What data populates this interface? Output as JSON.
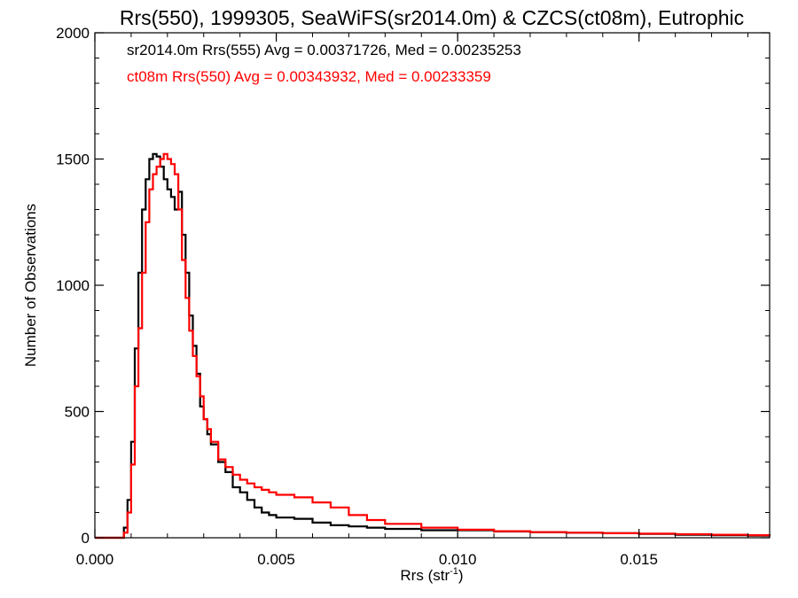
{
  "chart_data": {
    "type": "line",
    "title": "Rrs(550), 1999305, SeaWiFS(sr2014.0m) & CZCS(ct08m), Eutrophic",
    "xlabel": "Rrs (str",
    "xlabel_sup": "-1",
    "xlabel_suffix": ")",
    "ylabel": "Number of Observations",
    "xlim": [
      0.0,
      0.0186
    ],
    "ylim": [
      0,
      2000
    ],
    "x_ticks": [
      0.0,
      0.005,
      0.01,
      0.015
    ],
    "x_tick_labels": [
      "0.000",
      "0.005",
      "0.010",
      "0.015"
    ],
    "y_ticks": [
      0,
      500,
      1000,
      1500,
      2000
    ],
    "y_tick_labels": [
      "0",
      "500",
      "1000",
      "1500",
      "2000"
    ],
    "annotations": [
      "sr2014.0m Rrs(555) Avg = 0.00371726, Med = 0.00235253",
      "ct08m Rrs(550) Avg = 0.00343932, Med = 0.00233359"
    ],
    "legend_position": "top-left",
    "grid": false,
    "step": "histogram",
    "series": [
      {
        "color": "#000000",
        "x": [
          0.0,
          0.0007,
          0.0008,
          0.0009,
          0.001,
          0.0011,
          0.0012,
          0.0013,
          0.0014,
          0.0015,
          0.0016,
          0.0017,
          0.0018,
          0.0019,
          0.002,
          0.0021,
          0.0022,
          0.0023,
          0.0024,
          0.0025,
          0.0026,
          0.0027,
          0.0028,
          0.0029,
          0.003,
          0.0031,
          0.0032,
          0.0034,
          0.0036,
          0.0038,
          0.004,
          0.0042,
          0.0044,
          0.0046,
          0.0048,
          0.005,
          0.0055,
          0.006,
          0.0065,
          0.007,
          0.0075,
          0.008,
          0.009,
          0.01,
          0.011,
          0.012,
          0.013,
          0.014,
          0.015,
          0.016,
          0.017,
          0.018,
          0.0186
        ],
        "y": [
          0,
          0,
          40,
          150,
          380,
          750,
          1050,
          1300,
          1420,
          1500,
          1520,
          1510,
          1470,
          1420,
          1380,
          1350,
          1300,
          1370,
          1200,
          1050,
          880,
          760,
          650,
          520,
          470,
          410,
          370,
          300,
          260,
          200,
          180,
          150,
          120,
          100,
          90,
          80,
          75,
          60,
          50,
          45,
          40,
          35,
          30,
          30,
          25,
          22,
          20,
          18,
          15,
          12,
          10,
          8,
          6
        ]
      },
      {
        "color": "#ff0000",
        "x": [
          0.0,
          0.0007,
          0.0008,
          0.0009,
          0.001,
          0.0011,
          0.0012,
          0.0013,
          0.0014,
          0.0015,
          0.0016,
          0.0017,
          0.0018,
          0.0019,
          0.002,
          0.0021,
          0.0022,
          0.0023,
          0.0024,
          0.0025,
          0.0026,
          0.0027,
          0.0028,
          0.0029,
          0.003,
          0.0031,
          0.0032,
          0.0034,
          0.0036,
          0.0038,
          0.004,
          0.0042,
          0.0044,
          0.0046,
          0.0048,
          0.005,
          0.0055,
          0.006,
          0.0065,
          0.007,
          0.0075,
          0.008,
          0.009,
          0.01,
          0.011,
          0.012,
          0.013,
          0.014,
          0.015,
          0.016,
          0.017,
          0.018,
          0.0186
        ],
        "y": [
          0,
          0,
          20,
          100,
          290,
          600,
          830,
          1050,
          1250,
          1380,
          1440,
          1470,
          1500,
          1520,
          1500,
          1480,
          1440,
          1300,
          1100,
          950,
          820,
          720,
          640,
          560,
          470,
          430,
          380,
          310,
          280,
          250,
          230,
          215,
          200,
          190,
          180,
          170,
          160,
          140,
          120,
          90,
          70,
          55,
          40,
          32,
          26,
          22,
          20,
          18,
          16,
          14,
          12,
          10,
          8
        ]
      }
    ]
  }
}
